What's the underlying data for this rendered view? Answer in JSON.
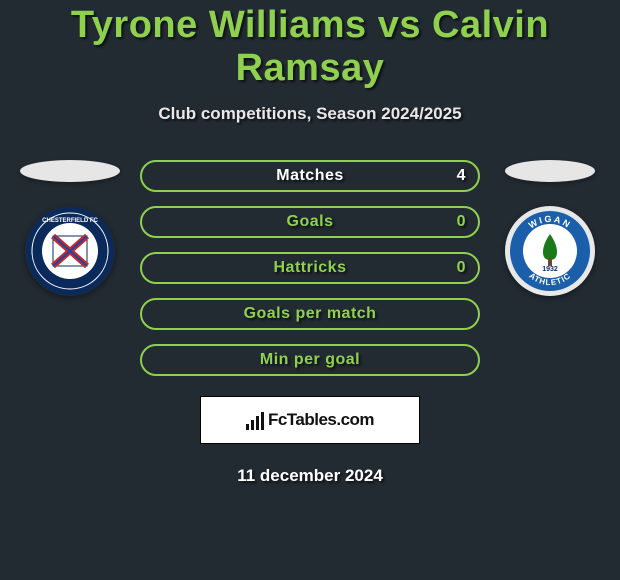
{
  "header": {
    "title": "Tyrone Williams vs Calvin Ramsay",
    "subtitle": "Club competitions, Season 2024/2025",
    "title_color": "#8fd14f"
  },
  "left_player": {
    "club_name": "Chesterfield FC",
    "badge": {
      "outer_bg": "#0a2a5c",
      "inner_bg": "#ffffff",
      "accent1": "#c62828",
      "accent2": "#1847a6"
    }
  },
  "right_player": {
    "club_name": "Wigan Athletic",
    "badge": {
      "outer_bg": "#e8e8e8",
      "ring_bg": "#1b5fab",
      "inner_bg": "#ffffff",
      "tree": "#1a7a1a",
      "year": "1932"
    }
  },
  "stats": [
    {
      "label": "Matches",
      "value": "4",
      "show_value": true,
      "border": "#8fd14f",
      "text": "#ffffff"
    },
    {
      "label": "Goals",
      "value": "0",
      "show_value": true,
      "border": "#8fd14f",
      "text": "#8fd14f"
    },
    {
      "label": "Hattricks",
      "value": "0",
      "show_value": true,
      "border": "#8fd14f",
      "text": "#8fd14f"
    },
    {
      "label": "Goals per match",
      "value": "",
      "show_value": false,
      "border": "#8fd14f",
      "text": "#8fd14f"
    },
    {
      "label": "Min per goal",
      "value": "",
      "show_value": false,
      "border": "#8fd14f",
      "text": "#8fd14f"
    }
  ],
  "branding": {
    "text": "FcTables.com"
  },
  "date": "11 december 2024",
  "style": {
    "background": "#222a32",
    "pill_bg": "transparent"
  }
}
